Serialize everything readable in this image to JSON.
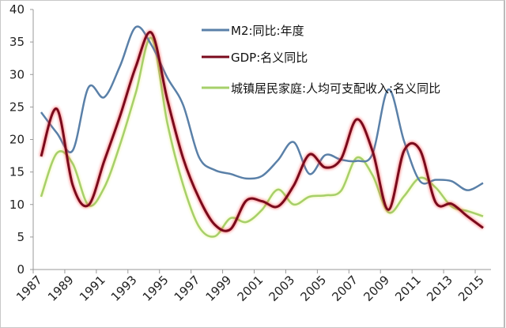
{
  "chart_data": {
    "type": "line",
    "title": "",
    "xlabel": "",
    "ylabel": "",
    "ylim": [
      0,
      40
    ],
    "yticks": [
      0,
      5,
      10,
      15,
      20,
      25,
      30,
      35,
      40
    ],
    "x": [
      1987,
      1988,
      1989,
      1990,
      1991,
      1992,
      1993,
      1994,
      1995,
      1996,
      1997,
      1998,
      1999,
      2000,
      2001,
      2002,
      2003,
      2004,
      2005,
      2006,
      2007,
      2008,
      2009,
      2010,
      2011,
      2012,
      2013,
      2014,
      2015
    ],
    "xtick_labels": [
      "1987",
      "1989",
      "1991",
      "1993",
      "1995",
      "1997",
      "1999",
      "2001",
      "2003",
      "2005",
      "2007",
      "2009",
      "2011",
      "2013",
      "2015"
    ],
    "grid": false,
    "legend_position": "top-center",
    "series": [
      {
        "name": "M2:同比:年度",
        "color": "#5a80a8",
        "values": [
          24.2,
          21.0,
          18.3,
          28.0,
          26.5,
          31.3,
          37.3,
          34.5,
          29.5,
          25.3,
          17.3,
          15.3,
          14.7,
          14.0,
          14.4,
          16.8,
          19.6,
          14.7,
          17.6,
          16.9,
          16.7,
          17.8,
          27.7,
          19.7,
          13.6,
          13.8,
          13.6,
          12.2,
          13.3
        ]
      },
      {
        "name": "GDP:名义同比",
        "color": "#7a0a1c",
        "values": [
          17.4,
          24.7,
          13.0,
          9.9,
          16.7,
          23.6,
          31.2,
          36.4,
          26.1,
          17.1,
          11.0,
          6.9,
          6.2,
          10.6,
          10.5,
          9.7,
          12.9,
          17.7,
          15.7,
          17.0,
          23.1,
          18.2,
          9.2,
          18.3,
          18.4,
          10.3,
          10.1,
          8.2,
          6.4
        ]
      },
      {
        "name": "城镇居民家庭:人均可支配收入:名义同比",
        "color": "#a6d06a",
        "values": [
          11.2,
          17.9,
          16.3,
          9.9,
          12.6,
          19.2,
          27.2,
          35.6,
          22.5,
          13.0,
          6.6,
          5.1,
          7.9,
          7.3,
          9.2,
          12.3,
          10.0,
          11.2,
          11.4,
          12.1,
          17.2,
          14.5,
          8.8,
          11.3,
          14.1,
          12.6,
          9.7,
          9.0,
          8.2
        ]
      }
    ]
  }
}
